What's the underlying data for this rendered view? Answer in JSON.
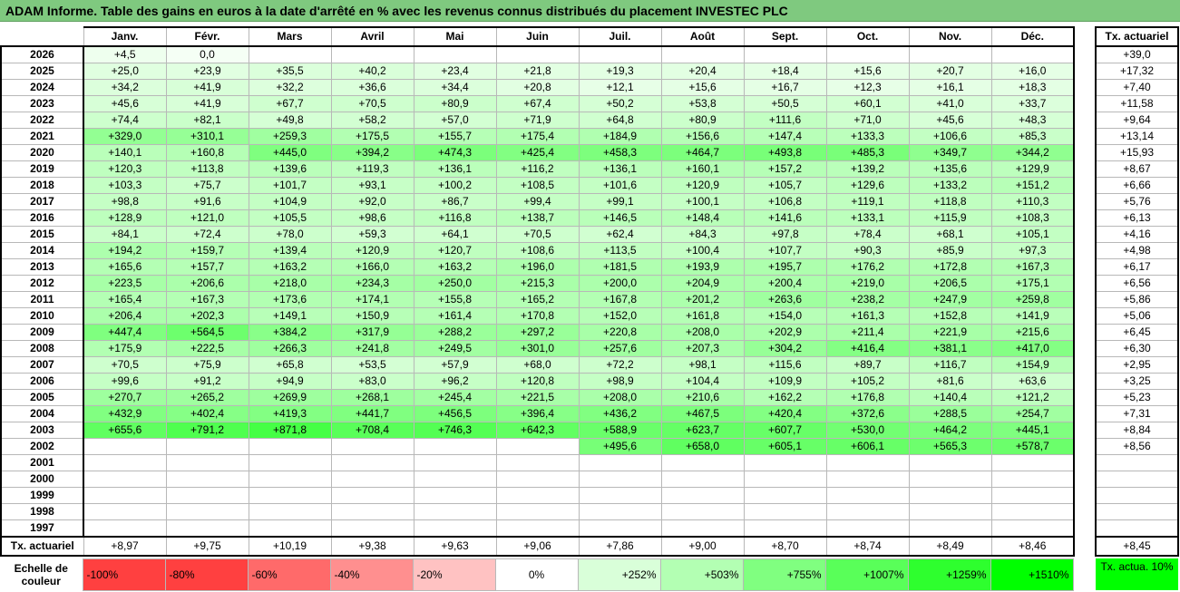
{
  "title": "ADAM Informe. Table des gains en euros à la date d'arrêté en % avec les revenus connus distribués du placement INVESTEC PLC",
  "months": [
    "Janv.",
    "Févr.",
    "Mars",
    "Avril",
    "Mai",
    "Juin",
    "Juil.",
    "Août",
    "Sept.",
    "Oct.",
    "Nov.",
    "Déc."
  ],
  "annual_header": "Tx. actuariel",
  "years": [
    {
      "year": "2026",
      "values": [
        "+4,5",
        "0,0",
        "",
        "",
        "",
        "",
        "",
        "",
        "",
        "",
        "",
        ""
      ],
      "annual": "+39,0"
    },
    {
      "year": "2025",
      "values": [
        "+25,0",
        "+23,9",
        "+35,5",
        "+40,2",
        "+23,4",
        "+21,8",
        "+19,3",
        "+20,4",
        "+18,4",
        "+15,6",
        "+20,7",
        "+16,0"
      ],
      "annual": "+17,32"
    },
    {
      "year": "2024",
      "values": [
        "+34,2",
        "+41,9",
        "+32,2",
        "+36,6",
        "+34,4",
        "+20,8",
        "+12,1",
        "+15,6",
        "+16,7",
        "+12,3",
        "+16,1",
        "+18,3"
      ],
      "annual": "+7,40"
    },
    {
      "year": "2023",
      "values": [
        "+45,6",
        "+41,9",
        "+67,7",
        "+70,5",
        "+80,9",
        "+67,4",
        "+50,2",
        "+53,8",
        "+50,5",
        "+60,1",
        "+41,0",
        "+33,7"
      ],
      "annual": "+11,58"
    },
    {
      "year": "2022",
      "values": [
        "+74,4",
        "+82,1",
        "+49,8",
        "+58,2",
        "+57,0",
        "+71,9",
        "+64,8",
        "+80,9",
        "+111,6",
        "+71,0",
        "+45,6",
        "+48,3"
      ],
      "annual": "+9,64"
    },
    {
      "year": "2021",
      "values": [
        "+329,0",
        "+310,1",
        "+259,3",
        "+175,5",
        "+155,7",
        "+175,4",
        "+184,9",
        "+156,6",
        "+147,4",
        "+133,3",
        "+106,6",
        "+85,3"
      ],
      "annual": "+13,14"
    },
    {
      "year": "2020",
      "values": [
        "+140,1",
        "+160,8",
        "+445,0",
        "+394,2",
        "+474,3",
        "+425,4",
        "+458,3",
        "+464,7",
        "+493,8",
        "+485,3",
        "+349,7",
        "+344,2"
      ],
      "annual": "+15,93"
    },
    {
      "year": "2019",
      "values": [
        "+120,3",
        "+113,8",
        "+139,6",
        "+119,3",
        "+136,1",
        "+116,2",
        "+136,1",
        "+160,1",
        "+157,2",
        "+139,2",
        "+135,6",
        "+129,9"
      ],
      "annual": "+8,67"
    },
    {
      "year": "2018",
      "values": [
        "+103,3",
        "+75,7",
        "+101,7",
        "+93,1",
        "+100,2",
        "+108,5",
        "+101,6",
        "+120,9",
        "+105,7",
        "+129,6",
        "+133,2",
        "+151,2"
      ],
      "annual": "+6,66"
    },
    {
      "year": "2017",
      "values": [
        "+98,8",
        "+91,6",
        "+104,9",
        "+92,0",
        "+86,7",
        "+99,4",
        "+99,1",
        "+100,1",
        "+106,8",
        "+119,1",
        "+118,8",
        "+110,3"
      ],
      "annual": "+5,76"
    },
    {
      "year": "2016",
      "values": [
        "+128,9",
        "+121,0",
        "+105,5",
        "+98,6",
        "+116,8",
        "+138,7",
        "+146,5",
        "+148,4",
        "+141,6",
        "+133,1",
        "+115,9",
        "+108,3"
      ],
      "annual": "+6,13"
    },
    {
      "year": "2015",
      "values": [
        "+84,1",
        "+72,4",
        "+78,0",
        "+59,3",
        "+64,1",
        "+70,5",
        "+62,4",
        "+84,3",
        "+97,8",
        "+78,4",
        "+68,1",
        "+105,1"
      ],
      "annual": "+4,16"
    },
    {
      "year": "2014",
      "values": [
        "+194,2",
        "+159,7",
        "+139,4",
        "+120,9",
        "+120,7",
        "+108,6",
        "+113,5",
        "+100,4",
        "+107,7",
        "+90,3",
        "+85,9",
        "+97,3"
      ],
      "annual": "+4,98"
    },
    {
      "year": "2013",
      "values": [
        "+165,6",
        "+157,7",
        "+163,2",
        "+166,0",
        "+163,2",
        "+196,0",
        "+181,5",
        "+193,9",
        "+195,7",
        "+176,2",
        "+172,8",
        "+167,3"
      ],
      "annual": "+6,17"
    },
    {
      "year": "2012",
      "values": [
        "+223,5",
        "+206,6",
        "+218,0",
        "+234,3",
        "+250,0",
        "+215,3",
        "+200,0",
        "+204,9",
        "+200,4",
        "+219,0",
        "+206,5",
        "+175,1"
      ],
      "annual": "+6,56"
    },
    {
      "year": "2011",
      "values": [
        "+165,4",
        "+167,3",
        "+173,6",
        "+174,1",
        "+155,8",
        "+165,2",
        "+167,8",
        "+201,2",
        "+263,6",
        "+238,2",
        "+247,9",
        "+259,8"
      ],
      "annual": "+5,86"
    },
    {
      "year": "2010",
      "values": [
        "+206,4",
        "+202,3",
        "+149,1",
        "+150,9",
        "+161,4",
        "+170,8",
        "+152,0",
        "+161,8",
        "+154,0",
        "+161,3",
        "+152,8",
        "+141,9"
      ],
      "annual": "+5,06"
    },
    {
      "year": "2009",
      "values": [
        "+447,4",
        "+564,5",
        "+384,2",
        "+317,9",
        "+288,2",
        "+297,2",
        "+220,8",
        "+208,0",
        "+202,9",
        "+211,4",
        "+221,9",
        "+215,6"
      ],
      "annual": "+6,45"
    },
    {
      "year": "2008",
      "values": [
        "+175,9",
        "+222,5",
        "+266,3",
        "+241,8",
        "+249,5",
        "+301,0",
        "+257,6",
        "+207,3",
        "+304,2",
        "+416,4",
        "+381,1",
        "+417,0"
      ],
      "annual": "+6,30"
    },
    {
      "year": "2007",
      "values": [
        "+70,5",
        "+75,9",
        "+65,8",
        "+53,5",
        "+57,9",
        "+68,0",
        "+72,2",
        "+98,1",
        "+115,6",
        "+89,7",
        "+116,7",
        "+154,9"
      ],
      "annual": "+2,95"
    },
    {
      "year": "2006",
      "values": [
        "+99,6",
        "+91,2",
        "+94,9",
        "+83,0",
        "+96,2",
        "+120,8",
        "+98,9",
        "+104,4",
        "+109,9",
        "+105,2",
        "+81,6",
        "+63,6"
      ],
      "annual": "+3,25"
    },
    {
      "year": "2005",
      "values": [
        "+270,7",
        "+265,2",
        "+269,9",
        "+268,1",
        "+245,4",
        "+221,5",
        "+208,0",
        "+210,6",
        "+162,2",
        "+176,8",
        "+140,4",
        "+121,2"
      ],
      "annual": "+5,23"
    },
    {
      "year": "2004",
      "values": [
        "+432,9",
        "+402,4",
        "+419,3",
        "+441,7",
        "+456,5",
        "+396,4",
        "+436,2",
        "+467,5",
        "+420,4",
        "+372,6",
        "+288,5",
        "+254,7"
      ],
      "annual": "+7,31"
    },
    {
      "year": "2003",
      "values": [
        "+655,6",
        "+791,2",
        "+871,8",
        "+708,4",
        "+746,3",
        "+642,3",
        "+588,9",
        "+623,7",
        "+607,7",
        "+530,0",
        "+464,2",
        "+445,1"
      ],
      "annual": "+8,84"
    },
    {
      "year": "2002",
      "values": [
        "",
        "",
        "",
        "",
        "",
        "",
        "+495,6",
        "+658,0",
        "+605,1",
        "+606,1",
        "+565,3",
        "+578,7"
      ],
      "annual": "+8,56"
    },
    {
      "year": "2001",
      "values": [
        "",
        "",
        "",
        "",
        "",
        "",
        "",
        "",
        "",
        "",
        "",
        ""
      ],
      "annual": ""
    },
    {
      "year": "2000",
      "values": [
        "",
        "",
        "",
        "",
        "",
        "",
        "",
        "",
        "",
        "",
        "",
        ""
      ],
      "annual": ""
    },
    {
      "year": "1999",
      "values": [
        "",
        "",
        "",
        "",
        "",
        "",
        "",
        "",
        "",
        "",
        "",
        ""
      ],
      "annual": ""
    },
    {
      "year": "1998",
      "values": [
        "",
        "",
        "",
        "",
        "",
        "",
        "",
        "",
        "",
        "",
        "",
        ""
      ],
      "annual": ""
    },
    {
      "year": "1997",
      "values": [
        "",
        "",
        "",
        "",
        "",
        "",
        "",
        "",
        "",
        "",
        "",
        ""
      ],
      "annual": ""
    }
  ],
  "monthly_annual_label": "Tx. actuariel",
  "monthly_annual": [
    "+8,97",
    "+9,75",
    "+10,19",
    "+9,38",
    "+9,63",
    "+9,06",
    "+7,86",
    "+9,00",
    "+8,70",
    "+8,74",
    "+8,49",
    "+8,46"
  ],
  "overall_annual": "+8,45",
  "scale": {
    "label": "Echelle de couleur",
    "steps": [
      {
        "text": "-100%",
        "color": "#ff4040"
      },
      {
        "text": "-80%",
        "color": "#ff4040"
      },
      {
        "text": "-60%",
        "color": "#ff6a6a"
      },
      {
        "text": "-40%",
        "color": "#ff8f8f"
      },
      {
        "text": "-20%",
        "color": "#ffc2c2"
      },
      {
        "text": "0%",
        "color": "#ffffff"
      },
      {
        "text": "+252%",
        "color": "#d9ffd9"
      },
      {
        "text": "+503%",
        "color": "#b3ffb3"
      },
      {
        "text": "+755%",
        "color": "#80ff80"
      },
      {
        "text": "+1007%",
        "color": "#59ff59"
      },
      {
        "text": "+1259%",
        "color": "#2eff2e"
      },
      {
        "text": "+1510%",
        "color": "#00ff00"
      }
    ],
    "legend": "Tx. actua. 10%"
  },
  "colors": {
    "title_bg": "#7fc97f",
    "max_green": "#00ff00"
  }
}
